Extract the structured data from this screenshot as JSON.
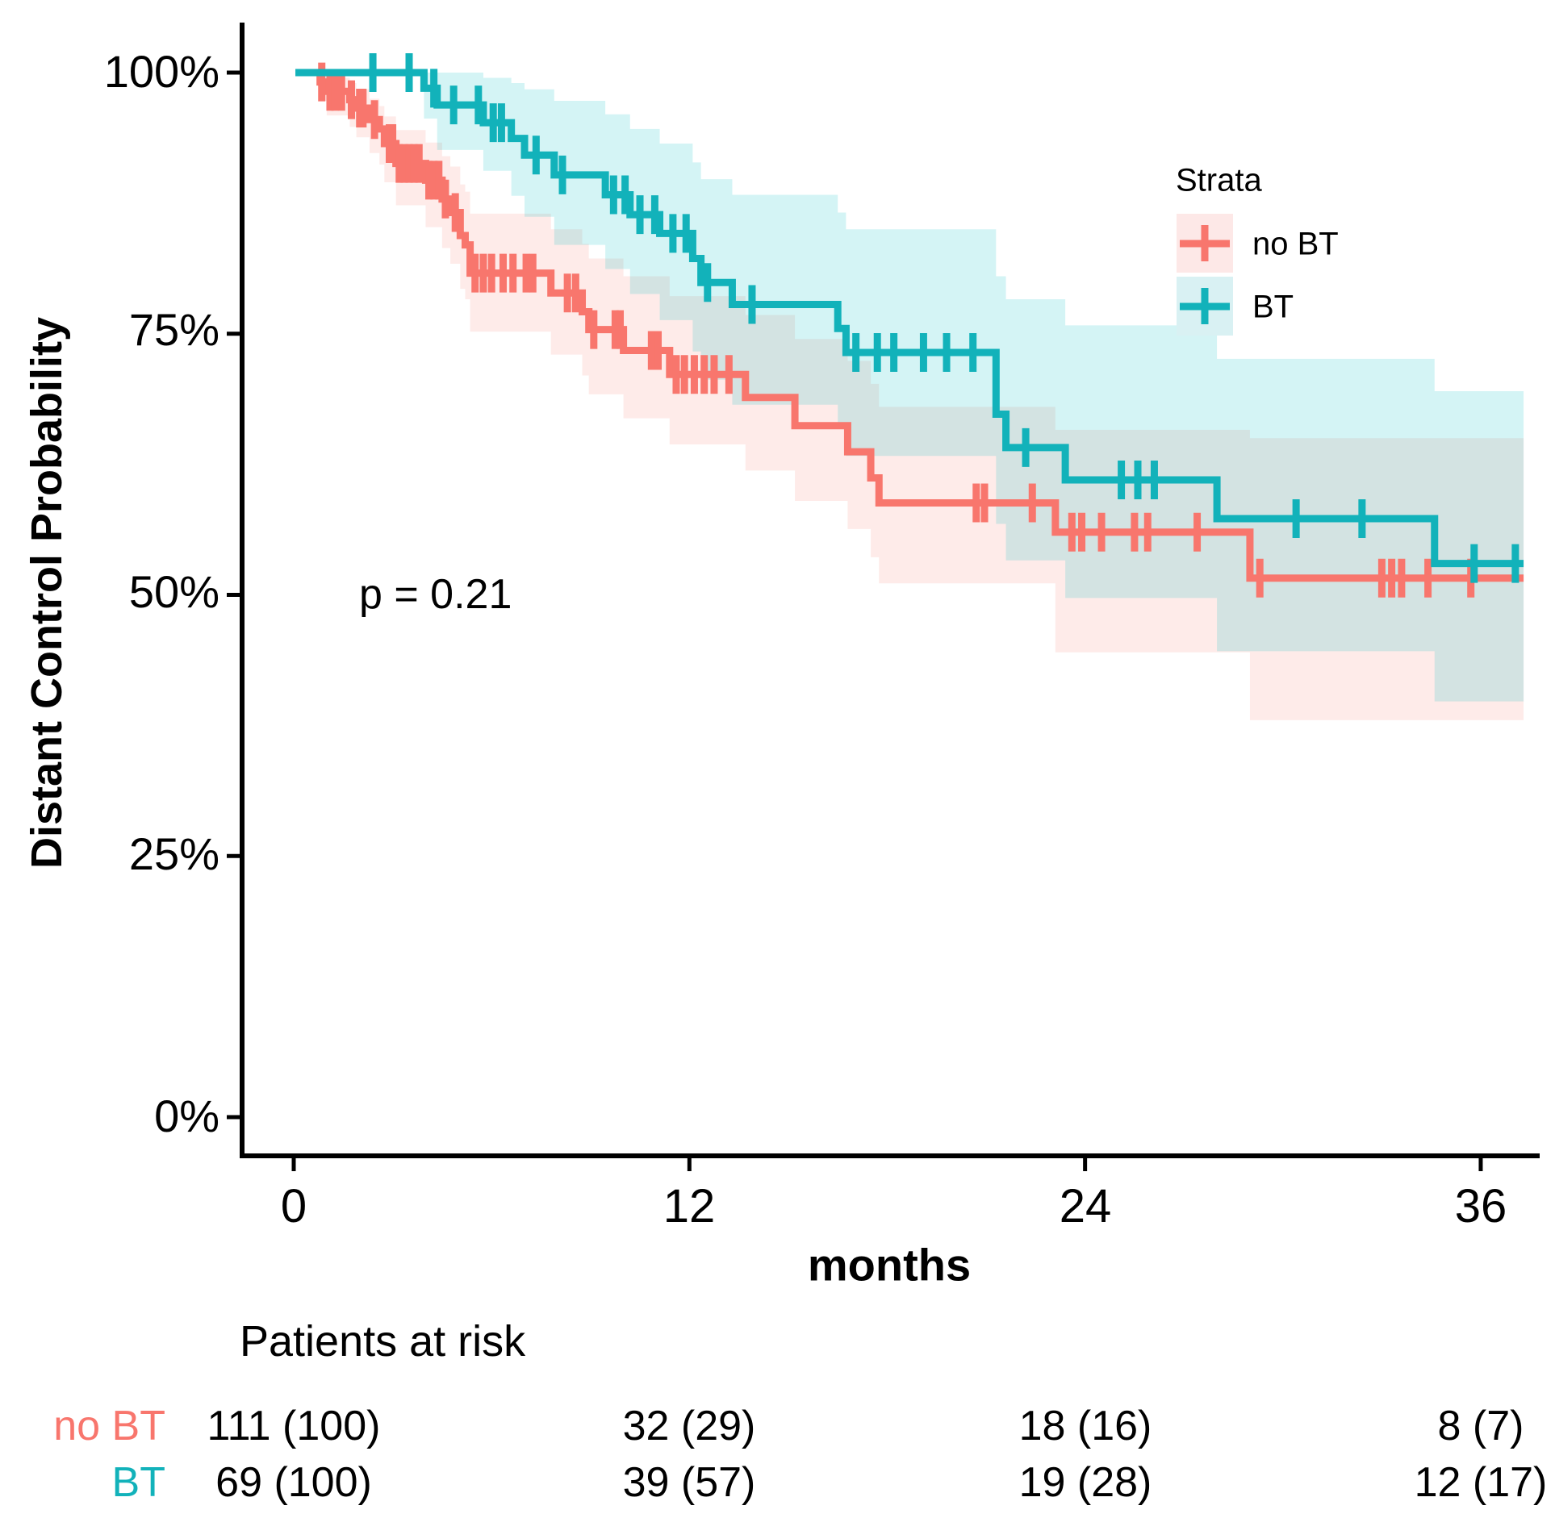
{
  "figure": {
    "background": "#FFFFFF",
    "p_value_label": "p = 0.21"
  },
  "axes": {
    "y_title": "Distant Control Probability",
    "x_title": "months",
    "y_tick_labels": [
      "100%",
      "75%",
      "50%",
      "25%",
      "0%"
    ],
    "x_tick_labels": [
      "0",
      "12",
      "24",
      "36"
    ]
  },
  "legend": {
    "title": "Strata",
    "items": [
      {
        "label": "no BT",
        "line_color": "#F8766D",
        "swatch_fill": "#FDE8E7"
      },
      {
        "label": "BT",
        "line_color": "#12B2BA",
        "swatch_fill": "#D9F1F3"
      }
    ]
  },
  "risk_table": {
    "title": "Patients at risk",
    "rows": [
      {
        "label": "no BT",
        "color": "#F8766D",
        "values": [
          "111 (100)",
          "32 (29)",
          "18 (16)",
          "8 (7)"
        ]
      },
      {
        "label": "BT",
        "color": "#12B2BA",
        "values": [
          "69 (100)",
          "39 (57)",
          "19 (28)",
          "12 (17)"
        ]
      }
    ]
  },
  "chart_data": {
    "type": "line",
    "subtype": "kaplan-meier-step",
    "title": "",
    "xlabel": "months",
    "ylabel": "Distant Control Probability",
    "xlim": [
      0,
      37.6
    ],
    "ylim": [
      0,
      100
    ],
    "x_ticks": [
      0,
      12,
      24,
      36
    ],
    "y_ticks": [
      100,
      75,
      50,
      25,
      0
    ],
    "grid": false,
    "legend_position": "inside-top-right",
    "p_value": 0.21,
    "annotation": {
      "text": "p = 0.21",
      "x_month": 2,
      "y_percent": 50
    },
    "end_time": 37.3,
    "series": [
      {
        "name": "no BT",
        "n_start": 111,
        "color": "#F8766D",
        "band_color": "#F8766D",
        "band_opacity": 0.15,
        "steps": [
          [
            0.3,
            100
          ],
          [
            0.8,
            99.1
          ],
          [
            1.0,
            98.2
          ],
          [
            1.7,
            97.4
          ],
          [
            1.9,
            96.6
          ],
          [
            2.3,
            95.5
          ],
          [
            2.6,
            94.6
          ],
          [
            2.75,
            93.2
          ],
          [
            3.1,
            91.3
          ],
          [
            4.0,
            89.7
          ],
          [
            4.5,
            87.9
          ],
          [
            4.75,
            86.6
          ],
          [
            5.05,
            84.4
          ],
          [
            5.2,
            83.5
          ],
          [
            5.35,
            80.8
          ],
          [
            7.8,
            78.9
          ],
          [
            8.75,
            77.1
          ],
          [
            8.95,
            75.4
          ],
          [
            10.0,
            73.4
          ],
          [
            11.4,
            71.1
          ],
          [
            13.7,
            68.9
          ],
          [
            15.2,
            66.2
          ],
          [
            16.8,
            63.7
          ],
          [
            17.5,
            61.2
          ],
          [
            17.75,
            58.8
          ],
          [
            23.1,
            56.0
          ],
          [
            29.0,
            51.6
          ]
        ],
        "censors": [
          [
            0.85,
            99.1
          ],
          [
            1.1,
            98.2
          ],
          [
            1.25,
            98.2
          ],
          [
            1.45,
            98.2
          ],
          [
            1.75,
            97.4
          ],
          [
            2.0,
            96.6
          ],
          [
            2.1,
            96.6
          ],
          [
            2.45,
            95.5
          ],
          [
            2.9,
            93.2
          ],
          [
            3.0,
            93.2
          ],
          [
            3.2,
            91.3
          ],
          [
            3.35,
            91.3
          ],
          [
            3.5,
            91.3
          ],
          [
            3.65,
            91.3
          ],
          [
            3.8,
            91.3
          ],
          [
            4.1,
            89.7
          ],
          [
            4.25,
            89.7
          ],
          [
            4.4,
            89.7
          ],
          [
            4.6,
            87.9
          ],
          [
            4.9,
            86.6
          ],
          [
            5.5,
            80.8
          ],
          [
            5.75,
            80.8
          ],
          [
            6.0,
            80.8
          ],
          [
            6.35,
            80.8
          ],
          [
            6.65,
            80.8
          ],
          [
            7.05,
            80.8
          ],
          [
            7.25,
            80.8
          ],
          [
            8.3,
            78.9
          ],
          [
            8.55,
            78.9
          ],
          [
            9.1,
            75.4
          ],
          [
            9.75,
            75.4
          ],
          [
            9.9,
            75.4
          ],
          [
            10.85,
            73.4
          ],
          [
            11.05,
            73.4
          ],
          [
            11.6,
            71.1
          ],
          [
            11.85,
            71.1
          ],
          [
            12.15,
            71.1
          ],
          [
            12.45,
            71.1
          ],
          [
            12.75,
            71.1
          ],
          [
            13.2,
            71.1
          ],
          [
            20.7,
            58.8
          ],
          [
            20.95,
            58.8
          ],
          [
            22.4,
            58.8
          ],
          [
            23.6,
            56.0
          ],
          [
            23.9,
            56.0
          ],
          [
            24.5,
            56.0
          ],
          [
            25.5,
            56.0
          ],
          [
            25.9,
            56.0
          ],
          [
            27.4,
            56.0
          ],
          [
            29.3,
            51.6
          ],
          [
            33.0,
            51.6
          ],
          [
            33.3,
            51.6
          ],
          [
            33.6,
            51.6
          ],
          [
            34.4,
            51.6
          ],
          [
            35.7,
            51.6
          ]
        ],
        "ci": [
          [
            0.3,
            100,
            100
          ],
          [
            0.8,
            99.8,
            97.3
          ],
          [
            1.0,
            99.5,
            95.9
          ],
          [
            1.7,
            99.0,
            94.8
          ],
          [
            1.9,
            98.4,
            93.8
          ],
          [
            2.3,
            97.5,
            92.3
          ],
          [
            2.6,
            96.8,
            91.2
          ],
          [
            2.75,
            95.8,
            89.5
          ],
          [
            3.1,
            94.5,
            87.3
          ],
          [
            4.0,
            93.3,
            85.2
          ],
          [
            4.5,
            92.0,
            83.2
          ],
          [
            4.75,
            91.0,
            81.7
          ],
          [
            5.05,
            89.3,
            79.3
          ],
          [
            5.2,
            88.6,
            78.3
          ],
          [
            5.35,
            86.5,
            75.2
          ],
          [
            7.8,
            85.0,
            73.0
          ],
          [
            8.75,
            83.6,
            71.0
          ],
          [
            8.95,
            82.2,
            69.2
          ],
          [
            10.0,
            80.5,
            66.9
          ],
          [
            11.4,
            78.6,
            64.4
          ],
          [
            13.7,
            76.8,
            61.9
          ],
          [
            15.2,
            74.5,
            59.0
          ],
          [
            16.8,
            72.4,
            56.3
          ],
          [
            17.5,
            70.2,
            53.6
          ],
          [
            17.75,
            68.0,
            51.1
          ],
          [
            23.1,
            65.8,
            44.5
          ],
          [
            29.0,
            65.0,
            38.0
          ]
        ]
      },
      {
        "name": "BT",
        "n_start": 69,
        "color": "#12B2BA",
        "band_color": "#00BFC4",
        "band_opacity": 0.17,
        "steps": [
          [
            0.05,
            100
          ],
          [
            3.95,
            98.5
          ],
          [
            4.35,
            96.9
          ],
          [
            5.75,
            95.2
          ],
          [
            6.6,
            93.7
          ],
          [
            7.0,
            92.1
          ],
          [
            7.9,
            90.2
          ],
          [
            9.45,
            88.3
          ],
          [
            10.2,
            86.4
          ],
          [
            11.1,
            84.6
          ],
          [
            12.1,
            82.2
          ],
          [
            12.35,
            79.9
          ],
          [
            13.3,
            77.8
          ],
          [
            16.5,
            75.5
          ],
          [
            16.75,
            73.2
          ],
          [
            21.3,
            67.3
          ],
          [
            21.6,
            64.1
          ],
          [
            23.4,
            61.0
          ],
          [
            28.0,
            57.3
          ],
          [
            34.6,
            53.0
          ]
        ],
        "censors": [
          [
            2.4,
            100
          ],
          [
            3.5,
            100
          ],
          [
            4.25,
            98.5
          ],
          [
            4.85,
            96.9
          ],
          [
            5.6,
            96.9
          ],
          [
            6.05,
            95.2
          ],
          [
            6.3,
            95.2
          ],
          [
            7.35,
            92.1
          ],
          [
            8.15,
            90.2
          ],
          [
            9.7,
            88.3
          ],
          [
            10.05,
            88.3
          ],
          [
            10.5,
            86.4
          ],
          [
            10.95,
            86.4
          ],
          [
            11.5,
            84.6
          ],
          [
            11.9,
            84.6
          ],
          [
            12.55,
            79.9
          ],
          [
            13.9,
            77.8
          ],
          [
            17.05,
            73.2
          ],
          [
            17.7,
            73.2
          ],
          [
            18.2,
            73.2
          ],
          [
            19.1,
            73.2
          ],
          [
            19.8,
            73.2
          ],
          [
            20.6,
            73.2
          ],
          [
            22.2,
            64.1
          ],
          [
            25.1,
            61.0
          ],
          [
            25.6,
            61.0
          ],
          [
            26.1,
            61.0
          ],
          [
            30.4,
            57.3
          ],
          [
            32.4,
            57.3
          ],
          [
            35.8,
            53.0
          ],
          [
            37.05,
            53.0
          ]
        ],
        "ci": [
          [
            0.05,
            100,
            100
          ],
          [
            3.95,
            100,
            95.6
          ],
          [
            4.35,
            100,
            92.6
          ],
          [
            5.75,
            99.5,
            90.6
          ],
          [
            6.6,
            99.0,
            88.2
          ],
          [
            7.0,
            98.4,
            86.2
          ],
          [
            7.9,
            97.3,
            83.5
          ],
          [
            9.45,
            96.0,
            81.2
          ],
          [
            10.2,
            94.6,
            78.8
          ],
          [
            11.1,
            93.2,
            76.3
          ],
          [
            12.1,
            91.4,
            73.3
          ],
          [
            12.35,
            89.8,
            70.6
          ],
          [
            13.3,
            88.3,
            68.2
          ],
          [
            16.5,
            86.6,
            65.9
          ],
          [
            16.75,
            85.0,
            63.3
          ],
          [
            21.3,
            80.5,
            56.8
          ],
          [
            21.6,
            78.3,
            53.3
          ],
          [
            23.4,
            75.8,
            49.7
          ],
          [
            28.0,
            72.6,
            44.6
          ],
          [
            34.6,
            69.5,
            39.8
          ]
        ]
      }
    ],
    "risk_table": {
      "title": "Patients at risk",
      "time_points": [
        0,
        12,
        24,
        36
      ],
      "rows": [
        {
          "name": "no BT",
          "at_risk": [
            111,
            32,
            18,
            8
          ],
          "percent": [
            100,
            29,
            16,
            7
          ]
        },
        {
          "name": "BT",
          "at_risk": [
            69,
            39,
            19,
            12
          ],
          "percent": [
            100,
            57,
            28,
            17
          ]
        }
      ]
    }
  }
}
